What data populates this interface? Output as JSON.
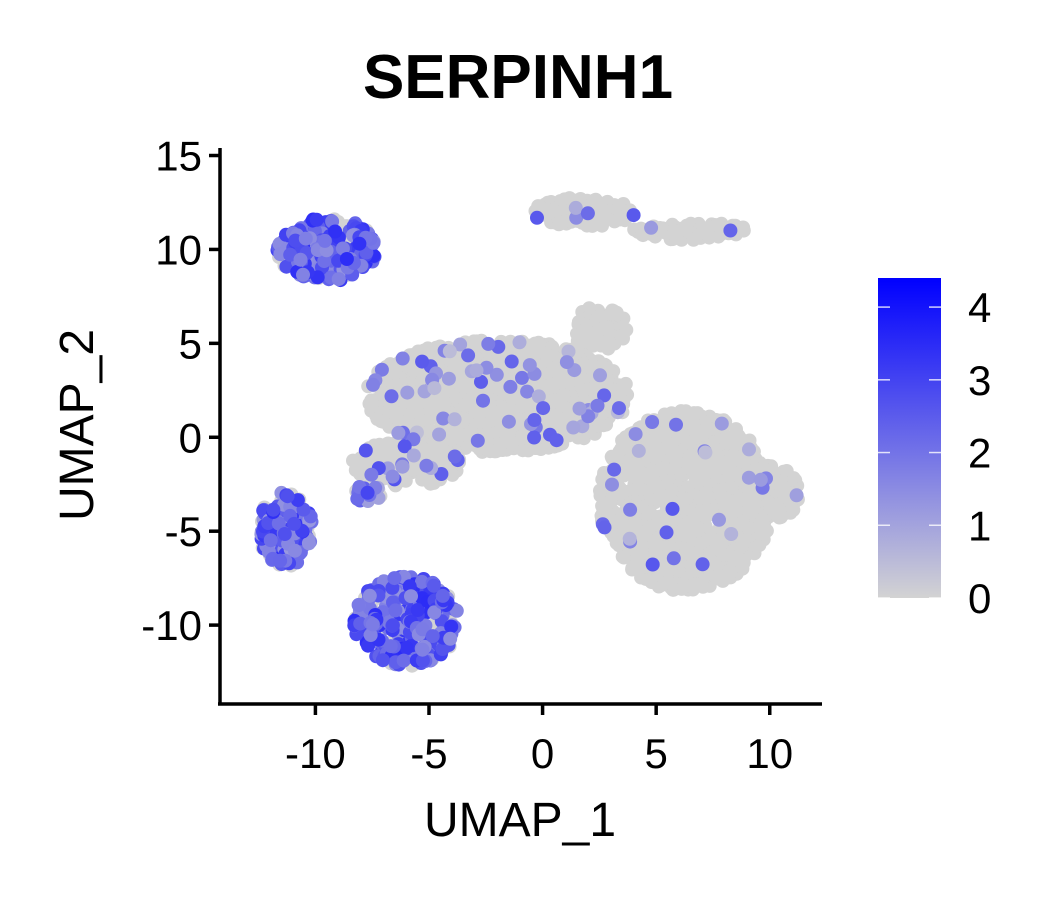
{
  "chart_data": {
    "type": "scatter",
    "title": "SERPINH1",
    "xlabel": "UMAP_1",
    "ylabel": "UMAP_2",
    "xlim": [
      -14.2,
      12.3
    ],
    "ylim": [
      -14.2,
      15.4
    ],
    "x_ticks": [
      -10,
      -5,
      0,
      5,
      10
    ],
    "y_ticks": [
      15,
      10,
      5,
      0,
      -5,
      -10
    ],
    "grid": false,
    "legend_position": "right",
    "colorbar": {
      "min": 0,
      "max": 4.4,
      "ticks": [
        4,
        3,
        2,
        1,
        0
      ],
      "low_color": "#D3D3D3",
      "high_color": "#0000FF"
    },
    "clusters": [
      {
        "name": "top-left",
        "cx": -9.5,
        "cy": 10.0,
        "rx": 2.2,
        "ry": 1.7,
        "level": 2.4,
        "frac": 0.75
      },
      {
        "name": "left-mid",
        "cx": -11.3,
        "cy": -4.9,
        "rx": 1.2,
        "ry": 2.0,
        "level": 2.3,
        "frac": 0.75
      },
      {
        "name": "bottom-left",
        "cx": -6.0,
        "cy": -9.8,
        "rx": 2.3,
        "ry": 2.4,
        "level": 2.4,
        "frac": 0.75
      },
      {
        "name": "small-left",
        "cx": -7.7,
        "cy": -3.0,
        "rx": 0.6,
        "ry": 0.5,
        "level": 1.9,
        "frac": 0.6
      },
      {
        "name": "center",
        "cx": -2.0,
        "cy": 2.2,
        "rx": 5.8,
        "ry": 3.0,
        "level": 1.5,
        "frac": 0.05
      },
      {
        "name": "arm",
        "cx": -6.0,
        "cy": -1.4,
        "rx": 2.4,
        "ry": 1.2,
        "level": 1.7,
        "frac": 0.12
      },
      {
        "name": "upper-small",
        "cx": 2.5,
        "cy": 5.8,
        "rx": 1.2,
        "ry": 1.2,
        "level": 0,
        "frac": 0
      },
      {
        "name": "top-right-main",
        "cx": 1.8,
        "cy": 12.0,
        "rx": 2.3,
        "ry": 0.8,
        "level": 1.5,
        "frac": 0.04
      },
      {
        "name": "top-right-arm",
        "cx": 6.5,
        "cy": 11.0,
        "rx": 2.5,
        "ry": 0.5,
        "level": 1.5,
        "frac": 0.04
      },
      {
        "name": "right-big",
        "cx": 6.3,
        "cy": -3.4,
        "rx": 3.8,
        "ry": 4.8,
        "level": 1.5,
        "frac": 0.02
      },
      {
        "name": "right-tail",
        "cx": 10.0,
        "cy": -3.0,
        "rx": 1.3,
        "ry": 1.5,
        "level": 1.5,
        "frac": 0.02
      }
    ]
  }
}
